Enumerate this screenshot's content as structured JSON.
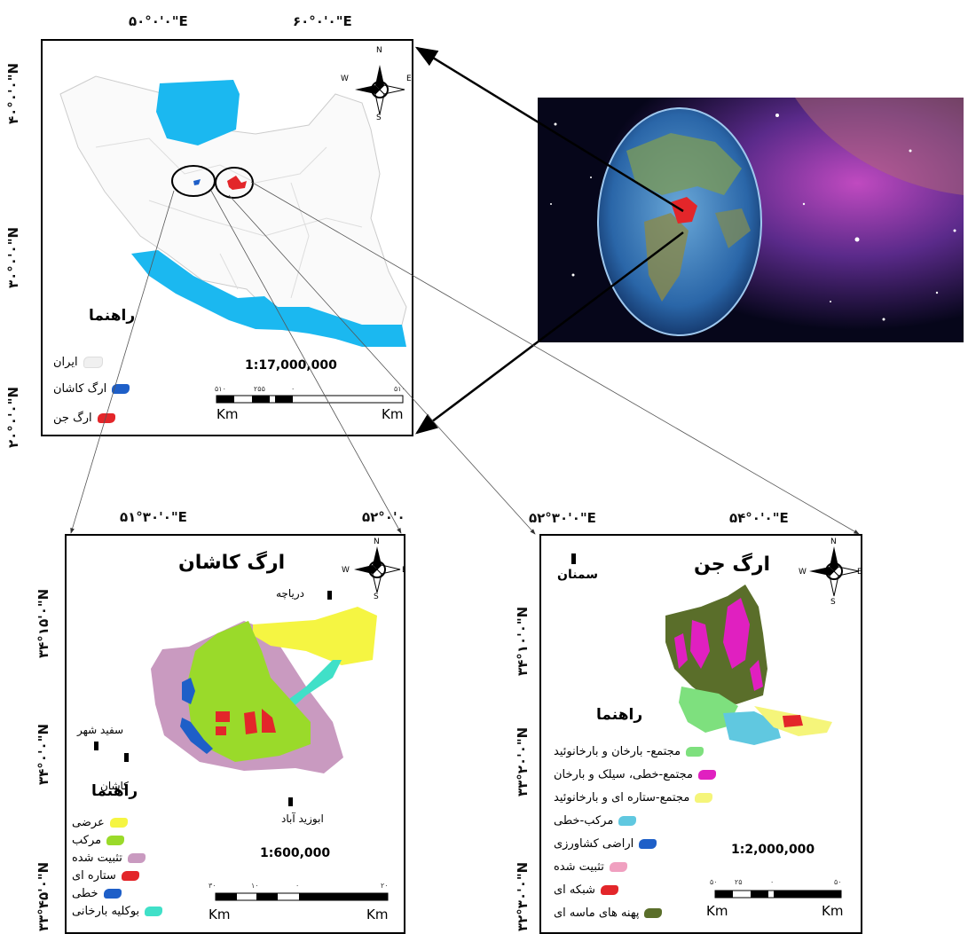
{
  "colors": {
    "sea": "#1bb8f0",
    "erg_jen": "#e3262a",
    "erg_kashan": "#1e5fc8"
  },
  "icons": [
    "north-arrow-icon",
    "city-marker-icon"
  ],
  "iran_map": {
    "lon_labels": [
      "۵۰°۰'۰\"E",
      "۶۰°۰'۰\"E"
    ],
    "lat_labels": [
      "۴۰°۰'۰\"N",
      "۳۰°۰'۰\"N",
      "۲۰°۰'۰\"N"
    ],
    "legend_title": "راهنما",
    "legend": [
      {
        "label": "ایران",
        "color": "#e8e8e8"
      },
      {
        "label": "ارگ کاشان",
        "color": "#1e5fc8"
      },
      {
        "label": "ارگ جن",
        "color": "#e3262a"
      }
    ],
    "scale": "1:17,000,000",
    "scale_ticks": [
      "۵۱۰",
      "۲۵۵",
      "۰",
      "۵۱۰"
    ],
    "km_left": "Km",
    "km_right": "Km",
    "compass": {
      "n": "N",
      "s": "S",
      "e": "E",
      "w": "W"
    }
  },
  "kashan_map": {
    "title": "ارگ کاشان",
    "lon_labels": [
      "۵۱°۳۰'۰\"E",
      "۵۲°۰'۰"
    ],
    "lat_labels": [
      "۳۴°۱۵'۰\"N",
      "۳۴°۰'۰\"N",
      "۳۳°۴۵'۰\"N"
    ],
    "cities": [
      "دریاچه",
      "سفید شهر",
      "کاشان",
      "ابوزید آباد"
    ],
    "legend_title": "راهنما",
    "legend": [
      {
        "label": "عرضی",
        "color": "#f5f542"
      },
      {
        "label": "مرکب",
        "color": "#9ada2a"
      },
      {
        "label": "تثبیت شده",
        "color": "#c99ac0"
      },
      {
        "label": "ستاره ای",
        "color": "#e3262a"
      },
      {
        "label": "خطی",
        "color": "#1e5fc8"
      },
      {
        "label": "بوکلیه بارخانی",
        "color": "#40e0c8"
      }
    ],
    "scale": "1:600,000",
    "scale_ticks": [
      "۳۰",
      "۱۰",
      "۰",
      "۲۰"
    ],
    "km_left": "Km",
    "km_right": "Km",
    "compass": {
      "n": "N",
      "s": "S",
      "e": "E",
      "w": "W"
    }
  },
  "jen_map": {
    "title": "ارگ جن",
    "lon_labels": [
      "۵۲°۳۰'۰\"E",
      "۵۴°۰'۰\"E"
    ],
    "lat_labels": [
      "۳۴°۱۰'۰\"N",
      "۳۳°۲۰'۰\"N",
      "۳۲°۳۰'۰\"N"
    ],
    "cities": [
      "سمنان"
    ],
    "legend_title": "راهنما",
    "legend": [
      {
        "label": "مجتمع- بارخان و بارخانوئید",
        "color": "#7ee07e"
      },
      {
        "label": "مجتمع-خطی، سیلک و بارخان",
        "color": "#e020c0"
      },
      {
        "label": "مجتمع-ستاره ای و بارخانوئید",
        "color": "#f5f57a"
      },
      {
        "label": "مرکب-خطی",
        "color": "#60c8e0"
      },
      {
        "label": "اراضی کشاورزی",
        "color": "#1e5fc8"
      },
      {
        "label": "تثبیت شده",
        "color": "#f0a0c0"
      },
      {
        "label": "شبکه ای",
        "color": "#e3262a"
      },
      {
        "label": "پهنه های ماسه ای",
        "color": "#5a6e2a"
      }
    ],
    "scale": "1:2,000,000",
    "scale_ticks": [
      "۵۰",
      "۲۵",
      "۰",
      "۵۰"
    ],
    "km_left": "Km",
    "km_right": "Km",
    "compass": {
      "n": "N",
      "s": "S",
      "e": "E",
      "w": "W"
    }
  }
}
